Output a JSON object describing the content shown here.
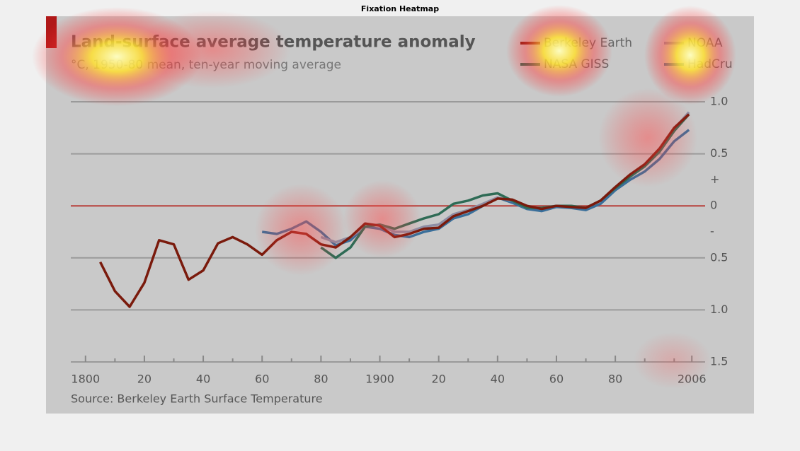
{
  "heatmap_title": "Fixation Heatmap",
  "chart_data": {
    "type": "line",
    "title": "Land-surface average temperature anomaly",
    "subtitle": "°C, 1950-80 mean, ten-year moving average",
    "source": "Source: Berkeley Earth Surface Temperature",
    "x": [
      1805,
      1810,
      1815,
      1820,
      1825,
      1830,
      1835,
      1840,
      1845,
      1850,
      1855,
      1860,
      1865,
      1870,
      1875,
      1880,
      1885,
      1890,
      1895,
      1900,
      1905,
      1910,
      1915,
      1920,
      1925,
      1930,
      1935,
      1940,
      1945,
      1950,
      1955,
      1960,
      1965,
      1970,
      1975,
      1980,
      1985,
      1990,
      1995,
      2000,
      2005
    ],
    "series": [
      {
        "name": "Berkeley Earth",
        "color": "#7a1a0c",
        "values": [
          -0.54,
          -0.82,
          -0.97,
          -0.74,
          -0.33,
          -0.37,
          -0.71,
          -0.62,
          -0.36,
          -0.3,
          -0.37,
          -0.47,
          -0.33,
          -0.25,
          -0.27,
          -0.37,
          -0.4,
          -0.3,
          -0.17,
          -0.19,
          -0.3,
          -0.27,
          -0.22,
          -0.21,
          -0.1,
          -0.05,
          0.0,
          0.07,
          0.06,
          0.0,
          -0.03,
          0.0,
          -0.01,
          -0.02,
          0.05,
          0.18,
          0.3,
          0.4,
          0.55,
          0.75,
          0.88
        ]
      },
      {
        "name": "NOAA",
        "color": "#8e8ea4",
        "values": [
          null,
          null,
          null,
          null,
          null,
          null,
          null,
          null,
          null,
          null,
          null,
          null,
          null,
          null,
          null,
          -0.3,
          -0.35,
          -0.3,
          -0.2,
          -0.18,
          -0.25,
          -0.25,
          -0.2,
          -0.18,
          -0.08,
          -0.04,
          0.02,
          0.08,
          0.05,
          -0.02,
          -0.02,
          0.0,
          0.0,
          -0.02,
          0.05,
          0.17,
          0.29,
          0.39,
          0.54,
          0.74,
          0.9
        ]
      },
      {
        "name": "NASA GISS",
        "color": "#2e6b55",
        "values": [
          null,
          null,
          null,
          null,
          null,
          null,
          null,
          null,
          null,
          null,
          null,
          null,
          null,
          null,
          null,
          -0.4,
          -0.5,
          -0.4,
          -0.2,
          -0.18,
          -0.22,
          -0.17,
          -0.12,
          -0.08,
          0.02,
          0.05,
          0.1,
          0.12,
          0.05,
          -0.02,
          -0.02,
          0.0,
          0.0,
          -0.02,
          0.05,
          0.17,
          0.28,
          0.38,
          0.52,
          0.72,
          0.88
        ]
      },
      {
        "name": "HadCru",
        "color": "#3a6f9a",
        "values": [
          null,
          null,
          null,
          null,
          null,
          null,
          null,
          null,
          null,
          null,
          null,
          -0.25,
          -0.27,
          -0.22,
          -0.15,
          -0.25,
          -0.38,
          -0.33,
          -0.2,
          -0.22,
          -0.28,
          -0.3,
          -0.25,
          -0.22,
          -0.12,
          -0.08,
          0.0,
          0.08,
          0.03,
          -0.03,
          -0.05,
          -0.01,
          -0.02,
          -0.04,
          0.02,
          0.15,
          0.25,
          0.33,
          0.45,
          0.62,
          0.73
        ]
      }
    ],
    "xlim": [
      1795,
      2011
    ],
    "xticks": [
      1800,
      {
        "value": 1820,
        "label": "20"
      },
      {
        "value": 1840,
        "label": "40"
      },
      {
        "value": 1860,
        "label": "60"
      },
      {
        "value": 1880,
        "label": "80"
      },
      1900,
      {
        "value": 1920,
        "label": "20"
      },
      {
        "value": 1940,
        "label": "40"
      },
      {
        "value": 1960,
        "label": "60"
      },
      {
        "value": 1980,
        "label": "80"
      },
      2006
    ],
    "xminorticks": [
      1810,
      1830,
      1850,
      1870,
      1890,
      1910,
      1930,
      1950,
      1970,
      1990,
      2000
    ],
    "ylim": [
      -1.5,
      1.0
    ],
    "yticks": [
      {
        "value": 1,
        "label": "1.0"
      },
      {
        "value": 0.5,
        "label": "0.5"
      },
      {
        "value": 0.25,
        "label": "+"
      },
      0,
      {
        "value": -0.25,
        "label": "-"
      },
      {
        "value": -0.5,
        "label": "0.5"
      },
      {
        "value": -1,
        "label": "1.0"
      },
      {
        "value": -1.5,
        "label": "1.5"
      }
    ],
    "grid": true,
    "zeroline_color": "#b8403a"
  }
}
